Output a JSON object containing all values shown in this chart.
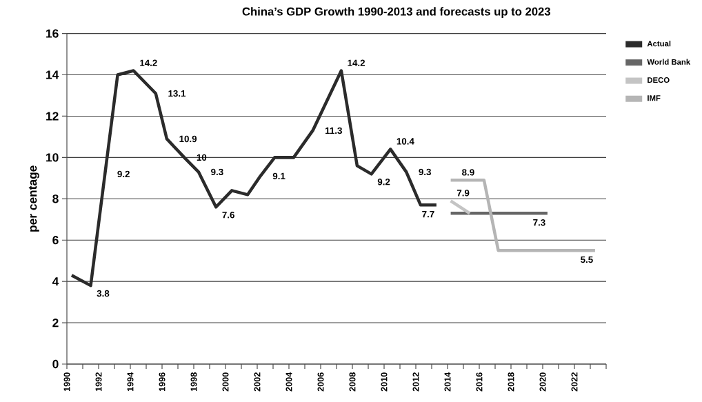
{
  "chart_data": {
    "type": "line",
    "title": "China’s GDP Growth 1990-2013 and forecasts up to 2023",
    "ylabel": "per centage",
    "xlim": [
      1990,
      2024
    ],
    "xticks": [
      {
        "value": 1990,
        "label": "1990"
      },
      {
        "value": 1991,
        "label": null
      },
      {
        "value": 1992,
        "label": "1992"
      },
      {
        "value": 1993,
        "label": null
      },
      {
        "value": 1994,
        "label": "1994"
      },
      {
        "value": 1995,
        "label": null
      },
      {
        "value": 1996,
        "label": "1996"
      },
      {
        "value": 1997,
        "label": null
      },
      {
        "value": 1998,
        "label": "1998"
      },
      {
        "value": 1999,
        "label": null
      },
      {
        "value": 2000,
        "label": "2000"
      },
      {
        "value": 2001,
        "label": null
      },
      {
        "value": 2002,
        "label": "2002"
      },
      {
        "value": 2003,
        "label": null
      },
      {
        "value": 2004,
        "label": "2004"
      },
      {
        "value": 2005,
        "label": null
      },
      {
        "value": 2006,
        "label": "2006"
      },
      {
        "value": 2007,
        "label": null
      },
      {
        "value": 2008,
        "label": "2008"
      },
      {
        "value": 2009,
        "label": null
      },
      {
        "value": 2010,
        "label": "2010"
      },
      {
        "value": 2011,
        "label": null
      },
      {
        "value": 2012,
        "label": "2012"
      },
      {
        "value": 2013,
        "label": null
      },
      {
        "value": 2014,
        "label": "2014"
      },
      {
        "value": 2015,
        "label": null
      },
      {
        "value": 2016,
        "label": "2016"
      },
      {
        "value": 2017,
        "label": null
      },
      {
        "value": 2018,
        "label": "2018"
      },
      {
        "value": 2019,
        "label": null
      },
      {
        "value": 2020,
        "label": "2020"
      },
      {
        "value": 2021,
        "label": null
      },
      {
        "value": 2022,
        "label": "2022"
      },
      {
        "value": 2023,
        "label": null
      },
      {
        "value": 2024,
        "label": null
      }
    ],
    "ylim": [
      0,
      16
    ],
    "yticks": [
      0,
      2,
      4,
      6,
      8,
      10,
      12,
      14,
      16
    ],
    "grid": "y",
    "legend": "top right",
    "series": [
      {
        "name": "Actual",
        "color": "#2b2b2b",
        "x": [
          1990.3,
          1991.5,
          1992.4,
          1993.2,
          1994.2,
          1995.6,
          1996.3,
          1997.4,
          1998.3,
          1999.4,
          2000.4,
          2001.4,
          2002.2,
          2003.1,
          2004.3,
          2005.5,
          2007.3,
          2008.3,
          2009.2,
          2010.4,
          2011.4,
          2012.3,
          2013.3
        ],
        "values": [
          4.3,
          3.8,
          9.2,
          14.0,
          14.2,
          13.1,
          10.9,
          10.0,
          9.3,
          7.6,
          8.4,
          8.2,
          9.1,
          10.0,
          10.0,
          11.3,
          14.2,
          9.6,
          9.2,
          10.4,
          9.3,
          7.7,
          7.7
        ],
        "value_labels": [
          null,
          "3.8",
          "9.2",
          null,
          "14.2",
          "13.1",
          "10.9",
          "10",
          "9.3",
          "7.6",
          null,
          null,
          "9.1",
          null,
          null,
          "11.3",
          "14.2",
          null,
          "9.2",
          "10.4",
          "9.3",
          null,
          "7.7"
        ]
      },
      {
        "name": "World Bank",
        "color": "#666666",
        "x": [
          2014.2,
          2020.3
        ],
        "values": [
          7.3,
          7.3
        ],
        "value_labels": [
          null,
          "7.3"
        ]
      },
      {
        "name": "DECO",
        "color": "#c4c4c4",
        "x": [
          2014.2,
          2015.4
        ],
        "values": [
          7.9,
          7.3
        ],
        "value_labels": [
          "7.9",
          null
        ]
      },
      {
        "name": "IMF",
        "color": "#b5b5b5",
        "x": [
          2014.2,
          2015.3,
          2016.3,
          2017.2,
          2023.3
        ],
        "values": [
          8.9,
          8.9,
          8.9,
          5.5,
          5.5
        ],
        "value_labels": [
          null,
          "8.9",
          null,
          null,
          "5.5"
        ]
      }
    ]
  }
}
